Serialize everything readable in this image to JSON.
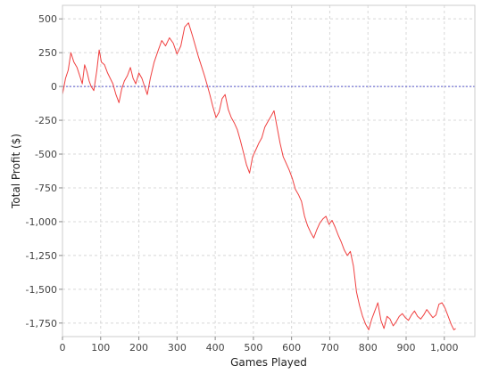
{
  "chart_data": {
    "type": "line",
    "xlabel": "Games Played",
    "ylabel": "Total Profit ($)",
    "xlim": [
      0,
      1080
    ],
    "ylim": [
      -1850,
      600
    ],
    "grid": true,
    "x_ticks": [
      0,
      100,
      200,
      300,
      400,
      500,
      600,
      700,
      800,
      900,
      1000
    ],
    "x_tick_labels": [
      "0",
      "100",
      "200",
      "300",
      "400",
      "500",
      "600",
      "700",
      "800",
      "900",
      "1,000"
    ],
    "y_ticks": [
      500,
      250,
      0,
      -250,
      -500,
      -750,
      -1000,
      -1250,
      -1500,
      -1750
    ],
    "y_tick_labels": [
      "500",
      "250",
      "0",
      "-250",
      "-500",
      "-750",
      "-1,000",
      "-1,250",
      "-1,500",
      "-1,750"
    ],
    "reference_line": {
      "y": 0,
      "color": "#5555cc",
      "style": "dashed"
    },
    "series": [
      {
        "color": "#f04040",
        "points": [
          [
            0,
            -60
          ],
          [
            8,
            60
          ],
          [
            15,
            120
          ],
          [
            22,
            250
          ],
          [
            30,
            180
          ],
          [
            38,
            140
          ],
          [
            45,
            80
          ],
          [
            52,
            20
          ],
          [
            58,
            160
          ],
          [
            64,
            110
          ],
          [
            70,
            40
          ],
          [
            75,
            0
          ],
          [
            82,
            -30
          ],
          [
            90,
            120
          ],
          [
            96,
            270
          ],
          [
            102,
            180
          ],
          [
            110,
            160
          ],
          [
            118,
            100
          ],
          [
            125,
            60
          ],
          [
            132,
            20
          ],
          [
            140,
            -60
          ],
          [
            148,
            -120
          ],
          [
            155,
            -20
          ],
          [
            162,
            40
          ],
          [
            170,
            80
          ],
          [
            178,
            140
          ],
          [
            185,
            60
          ],
          [
            192,
            20
          ],
          [
            200,
            100
          ],
          [
            208,
            60
          ],
          [
            215,
            0
          ],
          [
            222,
            -60
          ],
          [
            230,
            60
          ],
          [
            240,
            180
          ],
          [
            250,
            260
          ],
          [
            260,
            340
          ],
          [
            270,
            300
          ],
          [
            280,
            360
          ],
          [
            290,
            320
          ],
          [
            300,
            240
          ],
          [
            310,
            300
          ],
          [
            320,
            440
          ],
          [
            330,
            470
          ],
          [
            340,
            380
          ],
          [
            348,
            300
          ],
          [
            356,
            220
          ],
          [
            364,
            150
          ],
          [
            372,
            80
          ],
          [
            380,
            0
          ],
          [
            386,
            -60
          ],
          [
            394,
            -150
          ],
          [
            402,
            -230
          ],
          [
            410,
            -190
          ],
          [
            418,
            -90
          ],
          [
            426,
            -60
          ],
          [
            434,
            -170
          ],
          [
            442,
            -230
          ],
          [
            450,
            -270
          ],
          [
            458,
            -320
          ],
          [
            466,
            -400
          ],
          [
            474,
            -490
          ],
          [
            482,
            -580
          ],
          [
            490,
            -640
          ],
          [
            498,
            -520
          ],
          [
            506,
            -470
          ],
          [
            514,
            -420
          ],
          [
            522,
            -380
          ],
          [
            530,
            -300
          ],
          [
            538,
            -260
          ],
          [
            546,
            -220
          ],
          [
            554,
            -180
          ],
          [
            562,
            -300
          ],
          [
            570,
            -420
          ],
          [
            578,
            -520
          ],
          [
            586,
            -570
          ],
          [
            594,
            -620
          ],
          [
            602,
            -680
          ],
          [
            610,
            -760
          ],
          [
            618,
            -800
          ],
          [
            626,
            -850
          ],
          [
            634,
            -960
          ],
          [
            642,
            -1030
          ],
          [
            650,
            -1080
          ],
          [
            658,
            -1120
          ],
          [
            666,
            -1060
          ],
          [
            674,
            -1010
          ],
          [
            682,
            -980
          ],
          [
            690,
            -960
          ],
          [
            698,
            -1020
          ],
          [
            706,
            -990
          ],
          [
            714,
            -1040
          ],
          [
            722,
            -1100
          ],
          [
            730,
            -1150
          ],
          [
            738,
            -1210
          ],
          [
            746,
            -1250
          ],
          [
            754,
            -1220
          ],
          [
            762,
            -1330
          ],
          [
            770,
            -1520
          ],
          [
            778,
            -1620
          ],
          [
            786,
            -1700
          ],
          [
            794,
            -1760
          ],
          [
            802,
            -1800
          ],
          [
            810,
            -1720
          ],
          [
            818,
            -1660
          ],
          [
            826,
            -1600
          ],
          [
            834,
            -1730
          ],
          [
            842,
            -1790
          ],
          [
            850,
            -1700
          ],
          [
            858,
            -1720
          ],
          [
            866,
            -1770
          ],
          [
            874,
            -1740
          ],
          [
            882,
            -1700
          ],
          [
            890,
            -1680
          ],
          [
            898,
            -1710
          ],
          [
            906,
            -1730
          ],
          [
            914,
            -1690
          ],
          [
            922,
            -1660
          ],
          [
            930,
            -1700
          ],
          [
            938,
            -1720
          ],
          [
            946,
            -1690
          ],
          [
            954,
            -1650
          ],
          [
            962,
            -1680
          ],
          [
            970,
            -1710
          ],
          [
            978,
            -1690
          ],
          [
            986,
            -1610
          ],
          [
            994,
            -1600
          ],
          [
            1002,
            -1640
          ],
          [
            1010,
            -1700
          ],
          [
            1018,
            -1760
          ],
          [
            1025,
            -1800
          ],
          [
            1030,
            -1790
          ]
        ]
      }
    ]
  },
  "theme": {
    "background": "#ffffff",
    "grid_color": "#d8d8d8",
    "axis_color": "#888888",
    "line_color": "#f04040",
    "ref_line_color": "#5555cc"
  }
}
